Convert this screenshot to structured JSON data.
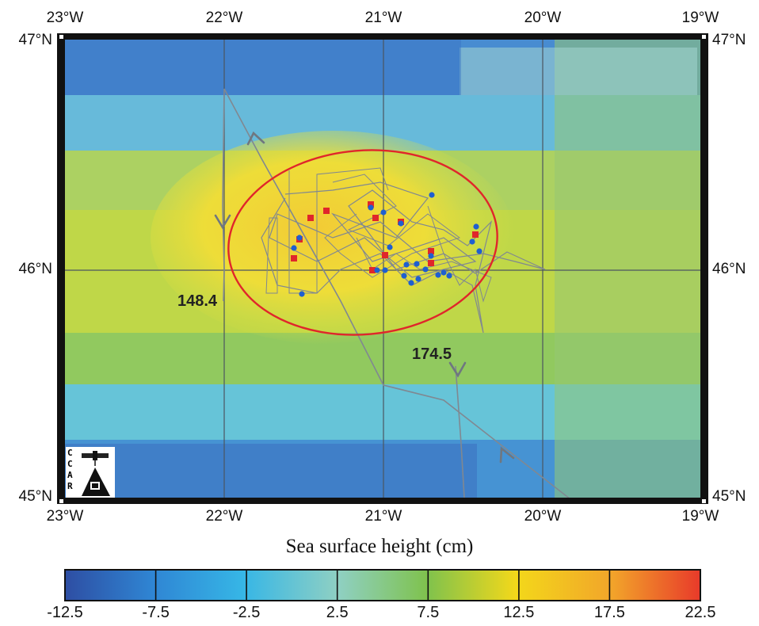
{
  "map": {
    "top_lon_labels": [
      "23°W",
      "22°W",
      "21°W",
      "20°W",
      "19°W"
    ],
    "bottom_lon_labels": [
      "23°W",
      "22°W",
      "21°W",
      "20°W",
      "19°W"
    ],
    "left_lat_labels": [
      "47°N",
      "46°N",
      "45°N"
    ],
    "right_lat_labels": [
      "47°N",
      "46°N",
      "45°N"
    ],
    "track_labels": [
      "148.4",
      "174.5"
    ],
    "logo_letters": [
      "C",
      "C",
      "A",
      "R"
    ],
    "colors": {
      "ellipse": "#e0262b",
      "red_marker": "#e0262b",
      "blue_marker": "#1f5fd0",
      "track": "#808891",
      "frame": "#111111"
    }
  },
  "colorbar": {
    "title": "Sea surface height (cm)",
    "ticks": [
      "-12.5",
      "-7.5",
      "-2.5",
      "2.5",
      "7.5",
      "12.5",
      "17.5",
      "22.5"
    ],
    "range": [
      -12.5,
      22.5
    ],
    "stops": [
      "#2e4ea3",
      "#2f86d4",
      "#36b6e6",
      "#8fd0c3",
      "#7fc24d",
      "#d8da2c",
      "#f3d81a",
      "#f2a52a",
      "#e83a2a"
    ]
  }
}
